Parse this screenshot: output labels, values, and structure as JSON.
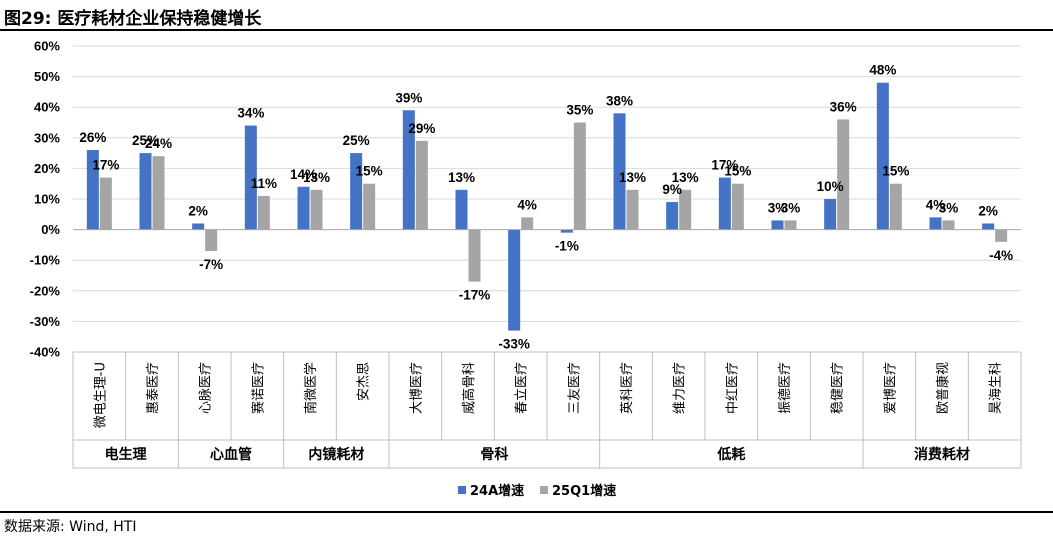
{
  "title": "图29:  医疗耗材企业保持稳健增长",
  "source": "数据来源: Wind, HTI",
  "chart_data": {
    "type": "bar",
    "categories": [
      "微电生理-U",
      "惠泰医疗",
      "心脉医疗",
      "赛诺医疗",
      "南微医学",
      "安杰思",
      "大博医疗",
      "威高骨科",
      "春立医疗",
      "三友医疗",
      "英科医疗",
      "维力医疗",
      "中红医疗",
      "振德医疗",
      "稳健医疗",
      "爱博医疗",
      "欧普康视",
      "昊海生科"
    ],
    "groups": [
      {
        "name": "电生理",
        "count": 2
      },
      {
        "name": "心血管",
        "count": 2
      },
      {
        "name": "内镜耗材",
        "count": 2
      },
      {
        "name": "骨科",
        "count": 4
      },
      {
        "name": "低耗",
        "count": 5
      },
      {
        "name": "消费耗材",
        "count": 3
      }
    ],
    "series": [
      {
        "name": "24A增速",
        "color": "#4472C4",
        "values": [
          26,
          25,
          2,
          34,
          14,
          25,
          39,
          13,
          -33,
          -1,
          38,
          9,
          17,
          3,
          10,
          48,
          4,
          2
        ],
        "labels": [
          "26%",
          "25%",
          "2%",
          "34%",
          "14%",
          "25%",
          "39%",
          "13%",
          "-33%",
          "-1%",
          "38%",
          "9%",
          "17%",
          "3%",
          "10%",
          "48%",
          "4%",
          "2%"
        ]
      },
      {
        "name": "25Q1增速",
        "color": "#A5A5A5",
        "values": [
          17,
          24,
          -7,
          11,
          13,
          15,
          29,
          -17,
          4,
          35,
          13,
          13,
          15,
          3,
          36,
          15,
          3,
          -4
        ],
        "labels": [
          "17%",
          "24%",
          "-7%",
          "11%",
          "13%",
          "15%",
          "29%",
          "-17%",
          "4%",
          "35%",
          "13%",
          "13%",
          "15%",
          "3%",
          "36%",
          "15%",
          "3%",
          "-4%"
        ]
      }
    ],
    "yticks": [
      "60%",
      "50%",
      "40%",
      "30%",
      "20%",
      "10%",
      "0%",
      "-10%",
      "-20%",
      "-30%",
      "-40%"
    ],
    "ylim": [
      -40,
      60
    ],
    "grid": true,
    "legend_position": "bottom-center"
  }
}
